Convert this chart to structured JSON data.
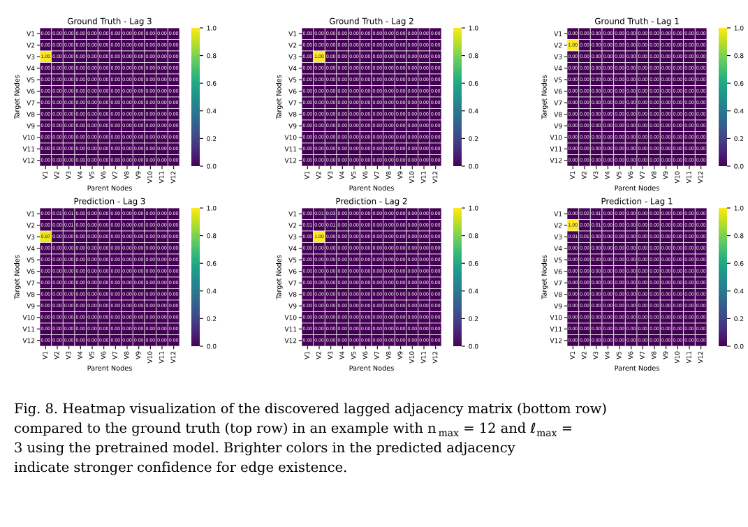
{
  "chart_data": [
    {
      "type": "heatmap",
      "title": "Ground Truth - Lag 3",
      "data_labels": true,
      "xlabel": "Parent Nodes",
      "ylabel": "Target Nodes",
      "categories": [
        "V1",
        "V2",
        "V3",
        "V4",
        "V5",
        "V6",
        "V7",
        "V8",
        "V9",
        "V10",
        "V11",
        "V12"
      ],
      "y_categories": [
        "V1",
        "V2",
        "V3",
        "V4",
        "V5",
        "V6",
        "V7",
        "V8",
        "V9",
        "V10",
        "V11",
        "V12"
      ],
      "clim": [
        0,
        1
      ],
      "cticks": [
        {
          "value": 0,
          "label": "0.0"
        },
        {
          "value": 0.2,
          "label": "0.2"
        },
        {
          "value": 0.4,
          "label": "0.4"
        },
        {
          "value": 0.6,
          "label": "0.6"
        },
        {
          "value": 0.8,
          "label": "0.8"
        },
        {
          "value": 1,
          "label": "1.0"
        }
      ],
      "cells": [
        [
          0,
          0,
          0,
          0,
          0,
          0,
          0,
          0,
          0,
          0,
          0,
          0
        ],
        [
          0,
          0,
          0,
          0,
          0,
          0,
          0,
          0,
          0,
          0,
          0,
          0
        ],
        [
          1,
          0,
          0,
          0,
          0,
          0,
          0,
          0,
          0,
          0,
          0,
          0
        ],
        [
          0,
          0,
          0,
          0,
          0,
          0,
          0,
          0,
          0,
          0,
          0,
          0
        ],
        [
          0,
          0,
          0,
          0,
          0,
          0,
          0,
          0,
          0,
          0,
          0,
          0
        ],
        [
          0,
          0,
          0,
          0,
          0,
          0,
          0,
          0,
          0,
          0,
          0,
          0
        ],
        [
          0,
          0,
          0,
          0,
          0,
          0,
          0,
          0,
          0,
          0,
          0,
          0
        ],
        [
          0,
          0,
          0,
          0,
          0,
          0,
          0,
          0,
          0,
          0,
          0,
          0
        ],
        [
          0,
          0,
          0,
          0,
          0,
          0,
          0,
          0,
          0,
          0,
          0,
          0
        ],
        [
          0,
          0,
          0,
          0,
          0,
          0,
          0,
          0,
          0,
          0,
          0,
          0
        ],
        [
          0,
          0,
          0,
          0,
          0,
          0,
          0,
          0,
          0,
          0,
          0,
          0
        ],
        [
          0,
          0,
          0,
          0,
          0,
          0,
          0,
          0,
          0,
          0,
          0,
          0
        ]
      ],
      "cell_labels": [
        [
          "0.00",
          "0.00",
          "0.00",
          "0.00",
          "0.00",
          "0.00",
          "0.00",
          "0.00",
          "0.00",
          "0.00",
          "0.00",
          "0.00"
        ],
        [
          "0.00",
          "0.00",
          "0.00",
          "0.00",
          "0.00",
          "0.00",
          "0.00",
          "0.00",
          "0.00",
          "0.00",
          "0.00",
          "0.00"
        ],
        [
          "1.00",
          "0.00",
          "0.00",
          "0.00",
          "0.00",
          "0.00",
          "0.00",
          "0.00",
          "0.00",
          "0.00",
          "0.00",
          "0.00"
        ],
        [
          "0.00",
          "0.00",
          "0.00",
          "0.00",
          "0.00",
          "0.00",
          "0.00",
          "0.00",
          "0.00",
          "0.00",
          "0.00",
          "0.00"
        ],
        [
          "0.00",
          "0.00",
          "0.00",
          "0.00",
          "0.00",
          "0.00",
          "0.00",
          "0.00",
          "0.00",
          "0.00",
          "0.00",
          "0.00"
        ],
        [
          "0.00",
          "0.00",
          "0.00",
          "0.00",
          "0.00",
          "0.00",
          "0.00",
          "0.00",
          "0.00",
          "0.00",
          "0.00",
          "0.00"
        ],
        [
          "0.00",
          "0.00",
          "0.00",
          "0.00",
          "0.00",
          "0.00",
          "0.00",
          "0.00",
          "0.00",
          "0.00",
          "0.00",
          "0.00"
        ],
        [
          "0.00",
          "0.00",
          "0.00",
          "0.00",
          "0.00",
          "0.00",
          "0.00",
          "0.00",
          "0.00",
          "0.00",
          "0.00",
          "0.00"
        ],
        [
          "0.00",
          "0.00",
          "0.00",
          "0.00",
          "0.00",
          "0.00",
          "0.00",
          "0.00",
          "0.00",
          "0.00",
          "0.00",
          "0.00"
        ],
        [
          "0.00",
          "0.00",
          "0.00",
          "0.00",
          "0.00",
          "0.00",
          "0.00",
          "0.00",
          "0.00",
          "0.00",
          "0.00",
          "0.00"
        ],
        [
          "0.00",
          "0.00",
          "0.00",
          "0.00",
          "0.00",
          "0.00",
          "0.00",
          "0.00",
          "0.00",
          "0.00",
          "0.00",
          "0.00"
        ],
        [
          "0.00",
          "0.00",
          "0.00",
          "0.00",
          "0.00",
          "0.00",
          "0.00",
          "0.00",
          "0.00",
          "0.00",
          "0.00",
          "0.00"
        ]
      ]
    },
    {
      "type": "heatmap",
      "title": "Ground Truth - Lag 2",
      "data_labels": true,
      "xlabel": "Parent Nodes",
      "ylabel": "Target Nodes",
      "categories": [
        "V1",
        "V2",
        "V3",
        "V4",
        "V5",
        "V6",
        "V7",
        "V8",
        "V9",
        "V10",
        "V11",
        "V12"
      ],
      "y_categories": [
        "V1",
        "V2",
        "V3",
        "V4",
        "V5",
        "V6",
        "V7",
        "V8",
        "V9",
        "V10",
        "V11",
        "V12"
      ],
      "clim": [
        0,
        1
      ],
      "cticks": [
        {
          "value": 0,
          "label": "0.0"
        },
        {
          "value": 0.2,
          "label": "0.2"
        },
        {
          "value": 0.4,
          "label": "0.4"
        },
        {
          "value": 0.6,
          "label": "0.6"
        },
        {
          "value": 0.8,
          "label": "0.8"
        },
        {
          "value": 1,
          "label": "1.0"
        }
      ],
      "cells": [
        [
          0,
          0,
          0,
          0,
          0,
          0,
          0,
          0,
          0,
          0,
          0,
          0
        ],
        [
          0,
          0,
          0,
          0,
          0,
          0,
          0,
          0,
          0,
          0,
          0,
          0
        ],
        [
          0,
          1,
          0,
          0,
          0,
          0,
          0,
          0,
          0,
          0,
          0,
          0
        ],
        [
          0,
          0,
          0,
          0,
          0,
          0,
          0,
          0,
          0,
          0,
          0,
          0
        ],
        [
          0,
          0,
          0,
          0,
          0,
          0,
          0,
          0,
          0,
          0,
          0,
          0
        ],
        [
          0,
          0,
          0,
          0,
          0,
          0,
          0,
          0,
          0,
          0,
          0,
          0
        ],
        [
          0,
          0,
          0,
          0,
          0,
          0,
          0,
          0,
          0,
          0,
          0,
          0
        ],
        [
          0,
          0,
          0,
          0,
          0,
          0,
          0,
          0,
          0,
          0,
          0,
          0
        ],
        [
          0,
          0,
          0,
          0,
          0,
          0,
          0,
          0,
          0,
          0,
          0,
          0
        ],
        [
          0,
          0,
          0,
          0,
          0,
          0,
          0,
          0,
          0,
          0,
          0,
          0
        ],
        [
          0,
          0,
          0,
          0,
          0,
          0,
          0,
          0,
          0,
          0,
          0,
          0
        ],
        [
          0,
          0,
          0,
          0,
          0,
          0,
          0,
          0,
          0,
          0,
          0,
          0
        ]
      ],
      "cell_labels": [
        [
          "0.00",
          "0.00",
          "0.00",
          "0.00",
          "0.00",
          "0.00",
          "0.00",
          "0.00",
          "0.00",
          "0.00",
          "0.00",
          "0.00"
        ],
        [
          "0.00",
          "0.00",
          "0.00",
          "0.00",
          "0.00",
          "0.00",
          "0.00",
          "0.00",
          "0.00",
          "0.00",
          "0.00",
          "0.00"
        ],
        [
          "0.00",
          "1.00",
          "0.00",
          "0.00",
          "0.00",
          "0.00",
          "0.00",
          "0.00",
          "0.00",
          "0.00",
          "0.00",
          "0.00"
        ],
        [
          "0.00",
          "0.00",
          "0.00",
          "0.00",
          "0.00",
          "0.00",
          "0.00",
          "0.00",
          "0.00",
          "0.00",
          "0.00",
          "0.00"
        ],
        [
          "0.00",
          "0.00",
          "0.00",
          "0.00",
          "0.00",
          "0.00",
          "0.00",
          "0.00",
          "0.00",
          "0.00",
          "0.00",
          "0.00"
        ],
        [
          "0.00",
          "0.00",
          "0.00",
          "0.00",
          "0.00",
          "0.00",
          "0.00",
          "0.00",
          "0.00",
          "0.00",
          "0.00",
          "0.00"
        ],
        [
          "0.00",
          "0.00",
          "0.00",
          "0.00",
          "0.00",
          "0.00",
          "0.00",
          "0.00",
          "0.00",
          "0.00",
          "0.00",
          "0.00"
        ],
        [
          "0.00",
          "0.00",
          "0.00",
          "0.00",
          "0.00",
          "0.00",
          "0.00",
          "0.00",
          "0.00",
          "0.00",
          "0.00",
          "0.00"
        ],
        [
          "0.00",
          "0.00",
          "0.00",
          "0.00",
          "0.00",
          "0.00",
          "0.00",
          "0.00",
          "0.00",
          "0.00",
          "0.00",
          "0.00"
        ],
        [
          "0.00",
          "0.00",
          "0.00",
          "0.00",
          "0.00",
          "0.00",
          "0.00",
          "0.00",
          "0.00",
          "0.00",
          "0.00",
          "0.00"
        ],
        [
          "0.00",
          "0.00",
          "0.00",
          "0.00",
          "0.00",
          "0.00",
          "0.00",
          "0.00",
          "0.00",
          "0.00",
          "0.00",
          "0.00"
        ],
        [
          "0.00",
          "0.00",
          "0.00",
          "0.00",
          "0.00",
          "0.00",
          "0.00",
          "0.00",
          "0.00",
          "0.00",
          "0.00",
          "0.00"
        ]
      ]
    },
    {
      "type": "heatmap",
      "title": "Ground Truth - Lag 1",
      "data_labels": true,
      "xlabel": "Parent Nodes",
      "ylabel": "Target Nodes",
      "categories": [
        "V1",
        "V2",
        "V3",
        "V4",
        "V5",
        "V6",
        "V7",
        "V8",
        "V9",
        "V10",
        "V11",
        "V12"
      ],
      "y_categories": [
        "V1",
        "V2",
        "V3",
        "V4",
        "V5",
        "V6",
        "V7",
        "V8",
        "V9",
        "V10",
        "V11",
        "V12"
      ],
      "clim": [
        0,
        1
      ],
      "cticks": [
        {
          "value": 0,
          "label": "0.0"
        },
        {
          "value": 0.2,
          "label": "0.2"
        },
        {
          "value": 0.4,
          "label": "0.4"
        },
        {
          "value": 0.6,
          "label": "0.6"
        },
        {
          "value": 0.8,
          "label": "0.8"
        },
        {
          "value": 1,
          "label": "1.0"
        }
      ],
      "cells": [
        [
          0,
          0,
          0,
          0,
          0,
          0,
          0,
          0,
          0,
          0,
          0,
          0
        ],
        [
          1,
          0,
          0,
          0,
          0,
          0,
          0,
          0,
          0,
          0,
          0,
          0
        ],
        [
          0,
          0,
          0,
          0,
          0,
          0,
          0,
          0,
          0,
          0,
          0,
          0
        ],
        [
          0,
          0,
          0,
          0,
          0,
          0,
          0,
          0,
          0,
          0,
          0,
          0
        ],
        [
          0,
          0,
          0,
          0,
          0,
          0,
          0,
          0,
          0,
          0,
          0,
          0
        ],
        [
          0,
          0,
          0,
          0,
          0,
          0,
          0,
          0,
          0,
          0,
          0,
          0
        ],
        [
          0,
          0,
          0,
          0,
          0,
          0,
          0,
          0,
          0,
          0,
          0,
          0
        ],
        [
          0,
          0,
          0,
          0,
          0,
          0,
          0,
          0,
          0,
          0,
          0,
          0
        ],
        [
          0,
          0,
          0,
          0,
          0,
          0,
          0,
          0,
          0,
          0,
          0,
          0
        ],
        [
          0,
          0,
          0,
          0,
          0,
          0,
          0,
          0,
          0,
          0,
          0,
          0
        ],
        [
          0,
          0,
          0,
          0,
          0,
          0,
          0,
          0,
          0,
          0,
          0,
          0
        ],
        [
          0,
          0,
          0,
          0,
          0,
          0,
          0,
          0,
          0,
          0,
          0,
          0
        ]
      ],
      "cell_labels": [
        [
          "0.00",
          "0.00",
          "0.00",
          "0.00",
          "0.00",
          "0.00",
          "0.00",
          "0.00",
          "0.00",
          "0.00",
          "0.00",
          "0.00"
        ],
        [
          "1.00",
          "0.00",
          "0.00",
          "0.00",
          "0.00",
          "0.00",
          "0.00",
          "0.00",
          "0.00",
          "0.00",
          "0.00",
          "0.00"
        ],
        [
          "0.00",
          "0.00",
          "0.00",
          "0.00",
          "0.00",
          "0.00",
          "0.00",
          "0.00",
          "0.00",
          "0.00",
          "0.00",
          "0.00"
        ],
        [
          "0.00",
          "0.00",
          "0.00",
          "0.00",
          "0.00",
          "0.00",
          "0.00",
          "0.00",
          "0.00",
          "0.00",
          "0.00",
          "0.00"
        ],
        [
          "0.00",
          "0.00",
          "0.00",
          "0.00",
          "0.00",
          "0.00",
          "0.00",
          "0.00",
          "0.00",
          "0.00",
          "0.00",
          "0.00"
        ],
        [
          "0.00",
          "0.00",
          "0.00",
          "0.00",
          "0.00",
          "0.00",
          "0.00",
          "0.00",
          "0.00",
          "0.00",
          "0.00",
          "0.00"
        ],
        [
          "0.00",
          "0.00",
          "0.00",
          "0.00",
          "0.00",
          "0.00",
          "0.00",
          "0.00",
          "0.00",
          "0.00",
          "0.00",
          "0.00"
        ],
        [
          "0.00",
          "0.00",
          "0.00",
          "0.00",
          "0.00",
          "0.00",
          "0.00",
          "0.00",
          "0.00",
          "0.00",
          "0.00",
          "0.00"
        ],
        [
          "0.00",
          "0.00",
          "0.00",
          "0.00",
          "0.00",
          "0.00",
          "0.00",
          "0.00",
          "0.00",
          "0.00",
          "0.00",
          "0.00"
        ],
        [
          "0.00",
          "0.00",
          "0.00",
          "0.00",
          "0.00",
          "0.00",
          "0.00",
          "0.00",
          "0.00",
          "0.00",
          "0.00",
          "0.00"
        ],
        [
          "0.00",
          "0.00",
          "0.00",
          "0.00",
          "0.00",
          "0.00",
          "0.00",
          "0.00",
          "0.00",
          "0.00",
          "0.00",
          "0.00"
        ],
        [
          "0.00",
          "0.00",
          "0.00",
          "0.00",
          "0.00",
          "0.00",
          "0.00",
          "0.00",
          "0.00",
          "0.00",
          "0.00",
          "0.00"
        ]
      ]
    },
    {
      "type": "heatmap",
      "title": "Prediction - Lag 3",
      "data_labels": true,
      "xlabel": "Parent Nodes",
      "ylabel": "Target Nodes",
      "categories": [
        "V1",
        "V2",
        "V3",
        "V4",
        "V5",
        "V6",
        "V7",
        "V8",
        "V9",
        "V10",
        "V11",
        "V12"
      ],
      "y_categories": [
        "V1",
        "V2",
        "V3",
        "V4",
        "V5",
        "V6",
        "V7",
        "V8",
        "V9",
        "V10",
        "V11",
        "V12"
      ],
      "clim": [
        0,
        1
      ],
      "cticks": [
        {
          "value": 0,
          "label": "0.0"
        },
        {
          "value": 0.2,
          "label": "0.2"
        },
        {
          "value": 0.4,
          "label": "0.4"
        },
        {
          "value": 0.6,
          "label": "0.6"
        },
        {
          "value": 0.8,
          "label": "0.8"
        },
        {
          "value": 1,
          "label": "1.0"
        }
      ],
      "cells": [
        [
          0,
          0.01,
          0.01,
          0,
          0,
          0,
          0,
          0,
          0,
          0,
          0,
          0
        ],
        [
          0,
          0,
          0.01,
          0,
          0,
          0,
          0,
          0,
          0,
          0,
          0,
          0
        ],
        [
          0.97,
          0,
          0,
          0,
          0,
          0,
          0,
          0,
          0,
          0,
          0,
          0
        ],
        [
          0,
          0,
          0,
          0,
          0,
          0,
          0,
          0,
          0,
          0,
          0,
          0
        ],
        [
          0,
          0,
          0,
          0,
          0,
          0,
          0,
          0,
          0,
          0,
          0,
          0
        ],
        [
          0,
          0,
          0,
          0,
          0,
          0,
          0,
          0,
          0,
          0,
          0,
          0
        ],
        [
          0,
          0,
          0,
          0,
          0,
          0,
          0,
          0,
          0,
          0,
          0,
          0
        ],
        [
          0,
          0,
          0,
          0,
          0,
          0,
          0,
          0,
          0,
          0,
          0,
          0
        ],
        [
          0,
          0,
          0,
          0,
          0,
          0,
          0,
          0,
          0,
          0,
          0,
          0
        ],
        [
          0,
          0,
          0,
          0,
          0,
          0,
          0,
          0,
          0,
          0,
          0,
          0
        ],
        [
          0,
          0,
          0,
          0,
          0,
          0,
          0,
          0,
          0,
          0,
          0,
          0
        ],
        [
          0,
          0,
          0,
          0,
          0,
          0,
          0,
          0,
          0,
          0,
          0,
          0
        ]
      ],
      "cell_labels": [
        [
          "0.00",
          "0.01",
          "0.01",
          "0.00",
          "0.00",
          "0.00",
          "0.00",
          "0.00",
          "0.00",
          "0.00",
          "0.00",
          "0.00"
        ],
        [
          "0.00",
          "0.00",
          "0.01",
          "0.00",
          "0.00",
          "0.00",
          "0.00",
          "0.00",
          "0.00",
          "0.00",
          "0.00",
          "0.00"
        ],
        [
          "0.97",
          "0.00",
          "0.00",
          "0.00",
          "0.00",
          "0.00",
          "0.00",
          "0.00",
          "0.00",
          "0.00",
          "0.00",
          "0.00"
        ],
        [
          "0.00",
          "0.00",
          "0.00",
          "0.00",
          "0.00",
          "0.00",
          "0.00",
          "0.00",
          "0.00",
          "0.00",
          "0.00",
          "0.00"
        ],
        [
          "0.00",
          "0.00",
          "0.00",
          "0.00",
          "0.00",
          "0.00",
          "0.00",
          "0.00",
          "0.00",
          "0.00",
          "0.00",
          "0.00"
        ],
        [
          "0.00",
          "0.00",
          "0.00",
          "0.00",
          "0.00",
          "0.00",
          "0.00",
          "0.00",
          "0.00",
          "0.00",
          "0.00",
          "0.00"
        ],
        [
          "0.00",
          "0.00",
          "0.00",
          "0.00",
          "0.00",
          "0.00",
          "0.00",
          "0.00",
          "0.00",
          "0.00",
          "0.00",
          "0.00"
        ],
        [
          "0.00",
          "0.00",
          "0.00",
          "0.00",
          "0.00",
          "0.00",
          "0.00",
          "0.00",
          "0.00",
          "0.00",
          "0.00",
          "0.00"
        ],
        [
          "0.00",
          "0.00",
          "0.00",
          "0.00",
          "0.00",
          "0.00",
          "0.00",
          "0.00",
          "0.00",
          "0.00",
          "0.00",
          "0.00"
        ],
        [
          "0.00",
          "0.00",
          "0.00",
          "0.00",
          "0.00",
          "0.00",
          "0.00",
          "0.00",
          "0.00",
          "0.00",
          "0.00",
          "0.00"
        ],
        [
          "0.00",
          "0.00",
          "0.00",
          "0.00",
          "0.00",
          "0.00",
          "0.00",
          "0.00",
          "0.00",
          "0.00",
          "0.00",
          "0.00"
        ],
        [
          "0.00",
          "0.00",
          "0.00",
          "0.00",
          "0.00",
          "0.00",
          "0.00",
          "0.00",
          "0.00",
          "0.00",
          "0.00",
          "0.00"
        ]
      ]
    },
    {
      "type": "heatmap",
      "title": "Prediction - Lag 2",
      "data_labels": true,
      "xlabel": "Parent Nodes",
      "ylabel": "Target Nodes",
      "categories": [
        "V1",
        "V2",
        "V3",
        "V4",
        "V5",
        "V6",
        "V7",
        "V8",
        "V9",
        "V10",
        "V11",
        "V12"
      ],
      "y_categories": [
        "V1",
        "V2",
        "V3",
        "V4",
        "V5",
        "V6",
        "V7",
        "V8",
        "V9",
        "V10",
        "V11",
        "V12"
      ],
      "clim": [
        0,
        1
      ],
      "cticks": [
        {
          "value": 0,
          "label": "0.0"
        },
        {
          "value": 0.2,
          "label": "0.2"
        },
        {
          "value": 0.4,
          "label": "0.4"
        },
        {
          "value": 0.6,
          "label": "0.6"
        },
        {
          "value": 0.8,
          "label": "0.8"
        },
        {
          "value": 1,
          "label": "1.0"
        }
      ],
      "cells": [
        [
          0,
          0.01,
          0.03,
          0,
          0,
          0,
          0,
          0,
          0,
          0,
          0,
          0
        ],
        [
          0.01,
          0,
          0.01,
          0,
          0,
          0,
          0,
          0,
          0,
          0,
          0,
          0
        ],
        [
          0,
          1,
          0,
          0,
          0,
          0,
          0,
          0,
          0,
          0,
          0,
          0
        ],
        [
          0,
          0,
          0,
          0,
          0,
          0,
          0,
          0,
          0,
          0,
          0,
          0
        ],
        [
          0,
          0,
          0,
          0,
          0,
          0,
          0,
          0,
          0,
          0,
          0,
          0
        ],
        [
          0,
          0,
          0,
          0,
          0,
          0,
          0,
          0,
          0,
          0,
          0,
          0
        ],
        [
          0,
          0,
          0,
          0,
          0,
          0,
          0,
          0,
          0,
          0,
          0,
          0
        ],
        [
          0,
          0,
          0,
          0,
          0,
          0,
          0,
          0,
          0,
          0,
          0,
          0
        ],
        [
          0,
          0,
          0,
          0,
          0,
          0,
          0,
          0,
          0,
          0,
          0,
          0
        ],
        [
          0,
          0,
          0,
          0,
          0,
          0,
          0,
          0,
          0,
          0,
          0,
          0
        ],
        [
          0,
          0,
          0,
          0,
          0,
          0,
          0,
          0,
          0,
          0,
          0,
          0
        ],
        [
          0,
          0,
          0,
          0,
          0,
          0,
          0,
          0,
          0,
          0,
          0,
          0
        ]
      ],
      "cell_labels": [
        [
          "0.00",
          "0.01",
          "0.03",
          "0.00",
          "0.00",
          "0.00",
          "0.00",
          "0.00",
          "0.00",
          "0.00",
          "0.00",
          "0.00"
        ],
        [
          "0.01",
          "0.00",
          "0.01",
          "0.00",
          "0.00",
          "0.00",
          "0.00",
          "0.00",
          "0.00",
          "0.00",
          "0.00",
          "0.00"
        ],
        [
          "0.00",
          "1.00",
          "0.00",
          "0.00",
          "0.00",
          "0.00",
          "0.00",
          "0.00",
          "0.00",
          "0.00",
          "0.00",
          "0.00"
        ],
        [
          "0.00",
          "0.00",
          "0.00",
          "0.00",
          "0.00",
          "0.00",
          "0.00",
          "0.00",
          "0.00",
          "0.00",
          "0.00",
          "0.00"
        ],
        [
          "0.00",
          "0.00",
          "0.00",
          "0.00",
          "0.00",
          "0.00",
          "0.00",
          "0.00",
          "0.00",
          "0.00",
          "0.00",
          "0.00"
        ],
        [
          "0.00",
          "0.00",
          "0.00",
          "0.00",
          "0.00",
          "0.00",
          "0.00",
          "0.00",
          "0.00",
          "0.00",
          "0.00",
          "0.00"
        ],
        [
          "0.00",
          "0.00",
          "0.00",
          "0.00",
          "0.00",
          "0.00",
          "0.00",
          "0.00",
          "0.00",
          "0.00",
          "0.00",
          "0.00"
        ],
        [
          "0.00",
          "0.00",
          "0.00",
          "0.00",
          "0.00",
          "0.00",
          "0.00",
          "0.00",
          "0.00",
          "0.00",
          "0.00",
          "0.00"
        ],
        [
          "0.00",
          "0.00",
          "0.00",
          "0.00",
          "0.00",
          "0.00",
          "0.00",
          "0.00",
          "0.00",
          "0.00",
          "0.00",
          "0.00"
        ],
        [
          "0.00",
          "0.00",
          "0.00",
          "0.00",
          "0.00",
          "0.00",
          "0.00",
          "0.00",
          "0.00",
          "0.00",
          "0.00",
          "0.00"
        ],
        [
          "0.00",
          "0.00",
          "0.00",
          "0.00",
          "0.00",
          "0.00",
          "0.00",
          "0.00",
          "0.00",
          "0.00",
          "0.00",
          "0.00"
        ],
        [
          "0.00",
          "0.00",
          "0.00",
          "0.00",
          "0.00",
          "0.00",
          "0.00",
          "0.00",
          "0.00",
          "0.00",
          "0.00",
          "0.00"
        ]
      ]
    },
    {
      "type": "heatmap",
      "title": "Prediction - Lag 1",
      "data_labels": true,
      "xlabel": "Parent Nodes",
      "ylabel": "Target Nodes",
      "categories": [
        "V1",
        "V2",
        "V3",
        "V4",
        "V5",
        "V6",
        "V7",
        "V8",
        "V9",
        "V10",
        "V11",
        "V12"
      ],
      "y_categories": [
        "V1",
        "V2",
        "V3",
        "V4",
        "V5",
        "V6",
        "V7",
        "V8",
        "V9",
        "V10",
        "V11",
        "V12"
      ],
      "clim": [
        0,
        1
      ],
      "cticks": [
        {
          "value": 0,
          "label": "0.0"
        },
        {
          "value": 0.2,
          "label": "0.2"
        },
        {
          "value": 0.4,
          "label": "0.4"
        },
        {
          "value": 0.6,
          "label": "0.6"
        },
        {
          "value": 0.8,
          "label": "0.8"
        },
        {
          "value": 1,
          "label": "1.0"
        }
      ],
      "cells": [
        [
          0,
          0.02,
          0.01,
          0,
          0,
          0,
          0,
          0,
          0,
          0,
          0,
          0
        ],
        [
          1,
          0,
          0.01,
          0,
          0,
          0,
          0,
          0,
          0,
          0,
          0,
          0
        ],
        [
          0.01,
          0.01,
          0,
          0,
          0,
          0,
          0,
          0,
          0,
          0,
          0,
          0
        ],
        [
          0,
          0,
          0,
          0,
          0,
          0,
          0,
          0,
          0,
          0,
          0,
          0
        ],
        [
          0,
          0,
          0,
          0,
          0,
          0,
          0,
          0,
          0,
          0,
          0,
          0
        ],
        [
          0,
          0,
          0,
          0,
          0,
          0,
          0,
          0,
          0,
          0,
          0,
          0
        ],
        [
          0,
          0,
          0,
          0,
          0,
          0,
          0,
          0,
          0,
          0,
          0,
          0
        ],
        [
          0,
          0,
          0,
          0,
          0,
          0,
          0,
          0,
          0,
          0,
          0,
          0
        ],
        [
          0,
          0,
          0,
          0,
          0,
          0,
          0,
          0,
          0,
          0,
          0,
          0
        ],
        [
          0,
          0,
          0,
          0,
          0,
          0,
          0,
          0,
          0,
          0,
          0,
          0
        ],
        [
          0,
          0,
          0,
          0,
          0,
          0,
          0,
          0,
          0,
          0,
          0,
          0
        ],
        [
          0,
          0,
          0,
          0,
          0,
          0,
          0,
          0,
          0,
          0,
          0,
          0
        ]
      ],
      "cell_labels": [
        [
          "0.00",
          "0.02",
          "0.01",
          "0.00",
          "0.00",
          "0.00",
          "0.00",
          "0.00",
          "0.00",
          "0.00",
          "0.00",
          "0.00"
        ],
        [
          "1.00",
          "0.00",
          "0.01",
          "0.00",
          "0.00",
          "0.00",
          "0.00",
          "0.00",
          "0.00",
          "0.00",
          "0.00",
          "0.00"
        ],
        [
          "0.01",
          "0.01",
          "0.00",
          "0.00",
          "0.00",
          "0.00",
          "0.00",
          "0.00",
          "0.00",
          "0.00",
          "0.00",
          "0.00"
        ],
        [
          "0.00",
          "0.00",
          "0.00",
          "0.00",
          "0.00",
          "0.00",
          "0.00",
          "0.00",
          "0.00",
          "0.00",
          "0.00",
          "0.00"
        ],
        [
          "0.00",
          "0.00",
          "0.00",
          "0.00",
          "0.00",
          "0.00",
          "0.00",
          "0.00",
          "0.00",
          "0.00",
          "0.00",
          "0.00"
        ],
        [
          "0.00",
          "0.00",
          "0.00",
          "0.00",
          "0.00",
          "0.00",
          "0.00",
          "0.00",
          "0.00",
          "0.00",
          "0.00",
          "0.00"
        ],
        [
          "0.00",
          "0.00",
          "0.00",
          "0.00",
          "0.00",
          "0.00",
          "0.00",
          "0.00",
          "0.00",
          "0.00",
          "0.00",
          "0.00"
        ],
        [
          "0.00",
          "0.00",
          "0.00",
          "0.00",
          "0.00",
          "0.00",
          "0.00",
          "0.00",
          "0.00",
          "0.00",
          "0.00",
          "0.00"
        ],
        [
          "0.00",
          "0.00",
          "0.00",
          "0.00",
          "0.00",
          "0.00",
          "0.00",
          "0.00",
          "0.00",
          "0.00",
          "0.00",
          "0.00"
        ],
        [
          "0.00",
          "0.00",
          "0.00",
          "0.00",
          "0.00",
          "0.00",
          "0.00",
          "0.00",
          "0.00",
          "0.00",
          "0.00",
          "0.00"
        ],
        [
          "0.00",
          "0.00",
          "0.00",
          "0.00",
          "0.00",
          "0.00",
          "0.00",
          "0.00",
          "0.00",
          "0.00",
          "0.00",
          "0.00"
        ],
        [
          "0.00",
          "0.00",
          "0.00",
          "0.00",
          "0.00",
          "0.00",
          "0.00",
          "0.00",
          "0.00",
          "0.00",
          "0.00",
          "0.00"
        ]
      ],
      "annotations": [
        "Fig. 8. Heatmap visualization of the discovered lagged adjacency matrix (bottom row)",
        "compared to the ground truth (top row) in an example with n$_{max}$ = 12 and ℓ$_{max}$ =",
        "3 using the pretrained model. Brighter colors in the predicted adjacency",
        "indicate stronger confidence for edge existence."
      ]
    }
  ]
}
